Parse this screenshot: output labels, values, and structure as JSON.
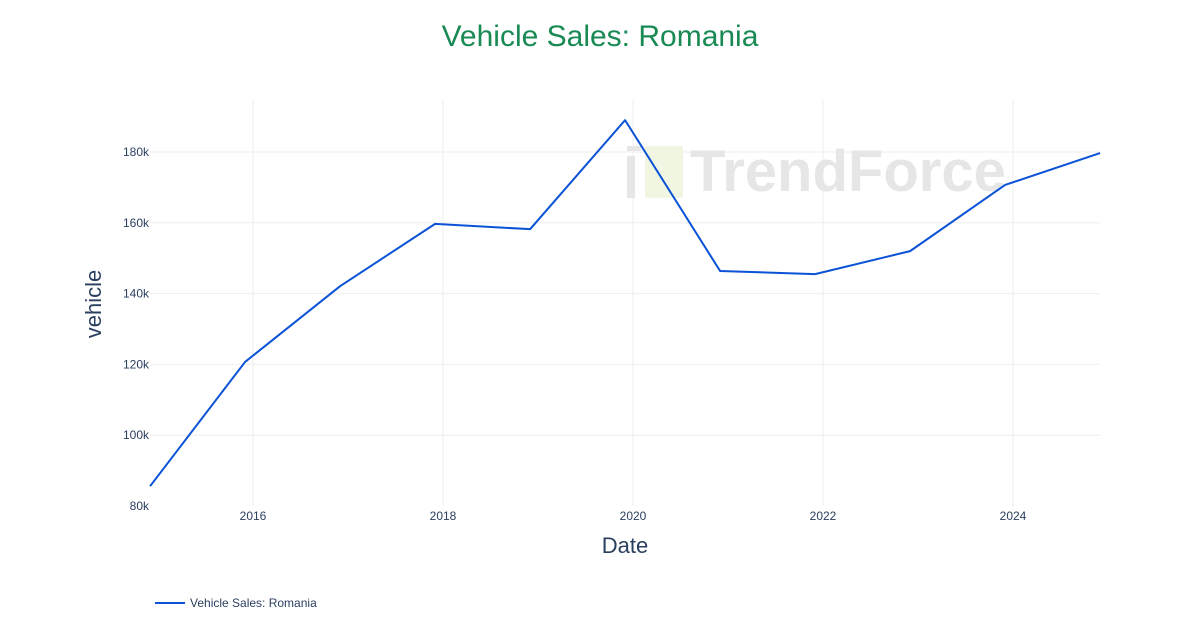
{
  "title": "Vehicle Sales: Romania",
  "xaxis": {
    "title": "Date",
    "ticks": [
      "2016",
      "2018",
      "2020",
      "2022",
      "2024"
    ]
  },
  "yaxis": {
    "title": "vehicle",
    "ticks": [
      "80k",
      "100k",
      "120k",
      "140k",
      "160k",
      "180k"
    ]
  },
  "legend": {
    "label": "Vehicle Sales: Romania"
  },
  "watermark": "TrendForce",
  "colors": {
    "line": "#0a52d6",
    "title": "#1a8a55",
    "text": "#2a3f5f",
    "grid": "#eeeeee"
  },
  "chart_data": {
    "type": "line",
    "title": "Vehicle Sales: Romania",
    "xlabel": "Date",
    "ylabel": "vehicle",
    "ylim": [
      80000,
      194000
    ],
    "grid": true,
    "legend_position": "bottom-left",
    "x": [
      "2014-12",
      "2015-12",
      "2016-12",
      "2017-12",
      "2018-12",
      "2019-12",
      "2020-12",
      "2021-12",
      "2022-12",
      "2023-12",
      "2024-12"
    ],
    "series": [
      {
        "name": "Vehicle Sales: Romania",
        "values": [
          85600,
          120700,
          142100,
          159700,
          158200,
          189000,
          146400,
          145500,
          152000,
          170700,
          179700
        ]
      }
    ]
  }
}
